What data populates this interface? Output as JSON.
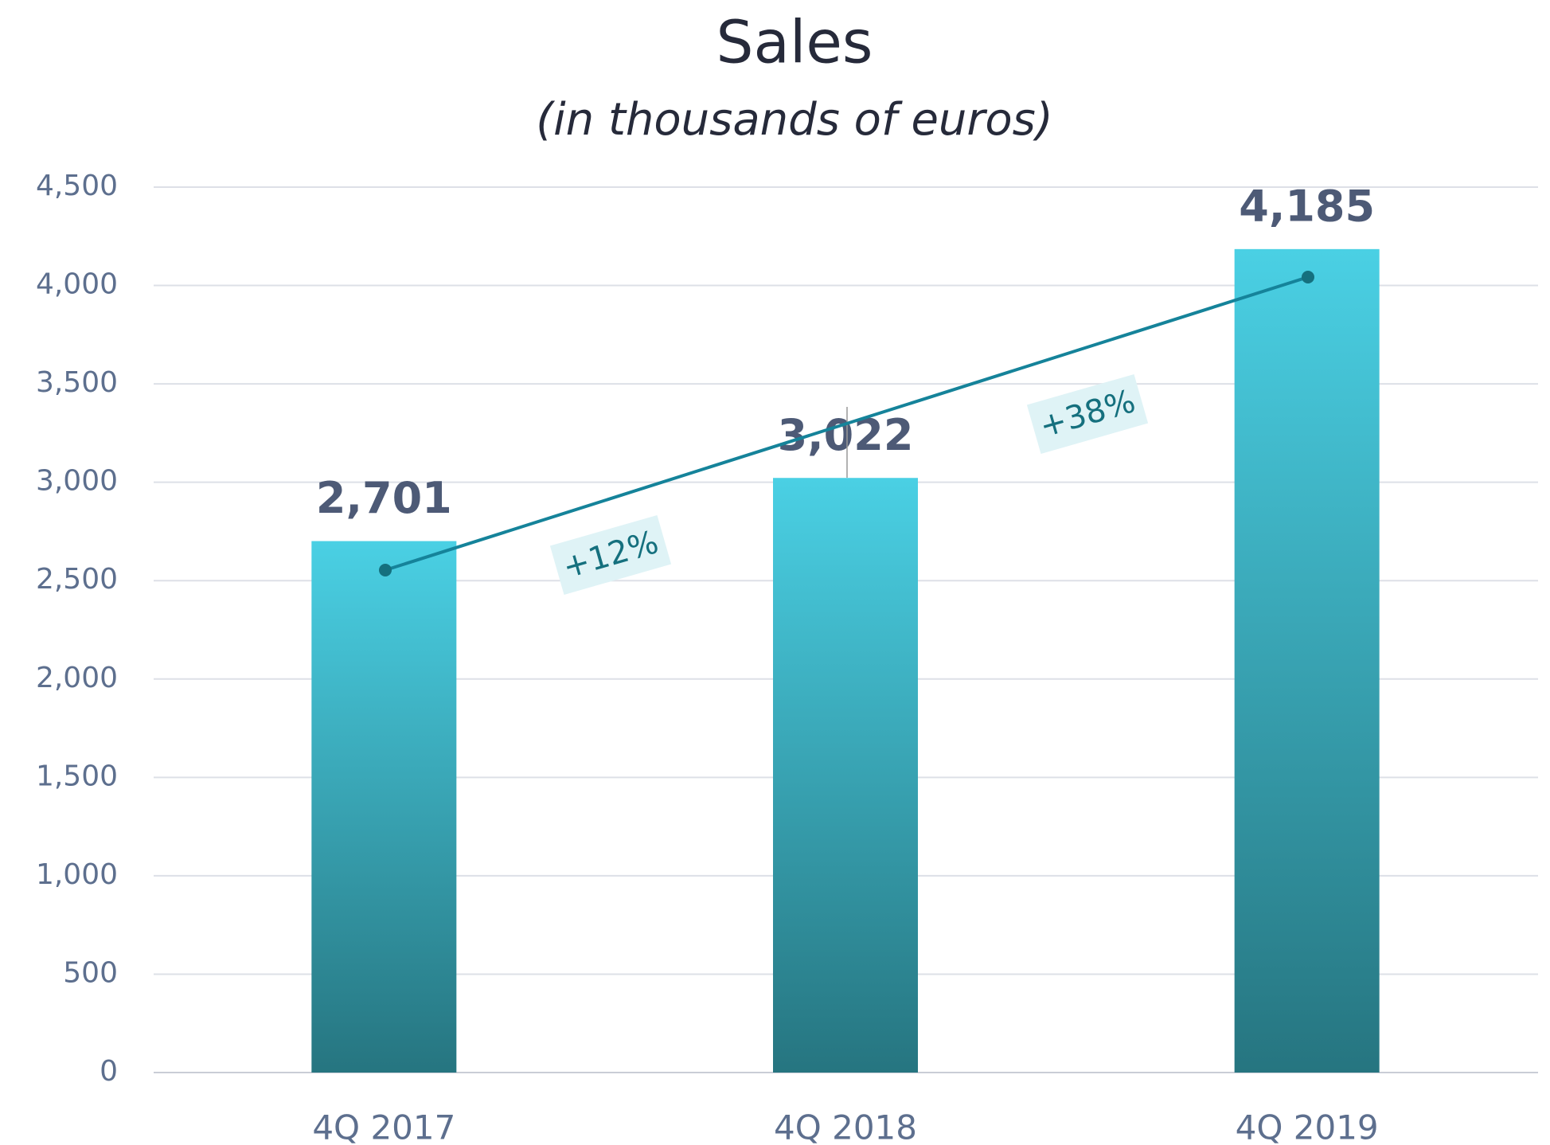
{
  "chart_data": {
    "type": "bar",
    "title": "Sales",
    "subtitle": "(in thousands of euros)",
    "categories": [
      "4Q 2017",
      "4Q 2018",
      "4Q 2019"
    ],
    "values": [
      2701,
      3022,
      4185
    ],
    "value_labels": [
      "2,701",
      "3,022",
      "4,185"
    ],
    "color": "#4ad0e4",
    "ylim": [
      0,
      4500
    ],
    "yticks": [
      0,
      500,
      {
        "value": 1000,
        "label": "1,000"
      },
      {
        "value": 1500,
        "label": "1,500"
      },
      {
        "value": 2000,
        "label": "2,000"
      },
      {
        "value": 2500,
        "label": "2,500"
      },
      {
        "value": 3000,
        "label": "3,000"
      },
      {
        "value": 3500,
        "label": "3,500"
      },
      {
        "value": 4000,
        "label": "4,000"
      },
      {
        "value": 4500,
        "label": "4,500"
      }
    ],
    "grid": true,
    "annotations": [
      "+12%",
      "+38%"
    ]
  }
}
